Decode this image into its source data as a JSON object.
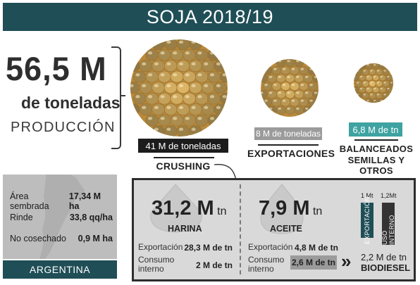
{
  "title": "SOJA 2018/19",
  "production": {
    "value": "56,5 M",
    "unit": "de toneladas",
    "label": "PRODUCCIÓN"
  },
  "destinations": [
    {
      "amount": "41 M de toneladas",
      "category": "CRUSHING"
    },
    {
      "amount": "8 M de toneladas",
      "category": "EXPORTACIONES"
    },
    {
      "amount": "6,8 M de tn",
      "category_line1": "BALANCEADOS",
      "category_line2": "SEMILLAS Y OTROS"
    }
  ],
  "stats": [
    {
      "label": "Área sembrada",
      "value": "17,34 M ha"
    },
    {
      "label": "Rinde",
      "value": "33,8 qq/ha"
    },
    {
      "label": "No cosechado",
      "value": "0,9 M ha"
    }
  ],
  "country": "ARGENTINA",
  "harina": {
    "value": "31,2 M",
    "unit": "tn",
    "name": "HARINA",
    "export_label": "Exportación",
    "export_value": "28,3 M de tn",
    "internal_label_1": "Consumo",
    "internal_label_2": "interno",
    "internal_value": "2 M de tn"
  },
  "aceite": {
    "value": "7,9 M",
    "unit": "tn",
    "name": "ACEITE",
    "export_label": "Exportación",
    "export_value": "4,8 M de tn",
    "internal_label_1": "Consumo",
    "internal_label_2": "interno",
    "internal_value": "2,6 M de tn",
    "bar_export_top": "1 Mt",
    "bar_export_label": "EXPORTACIÓN",
    "bar_internal_top": "1,2Mt",
    "bar_internal_label": "USO INTERNO",
    "biodiesel_value": "2,2 M de tn",
    "biodiesel_label": "BIODIESEL",
    "arrow": "»"
  },
  "colors": {
    "banner": "#1f4e56",
    "teal": "#3ea3a1",
    "grey_tag": "#9b9b9b",
    "bean": "#d9b05a"
  }
}
